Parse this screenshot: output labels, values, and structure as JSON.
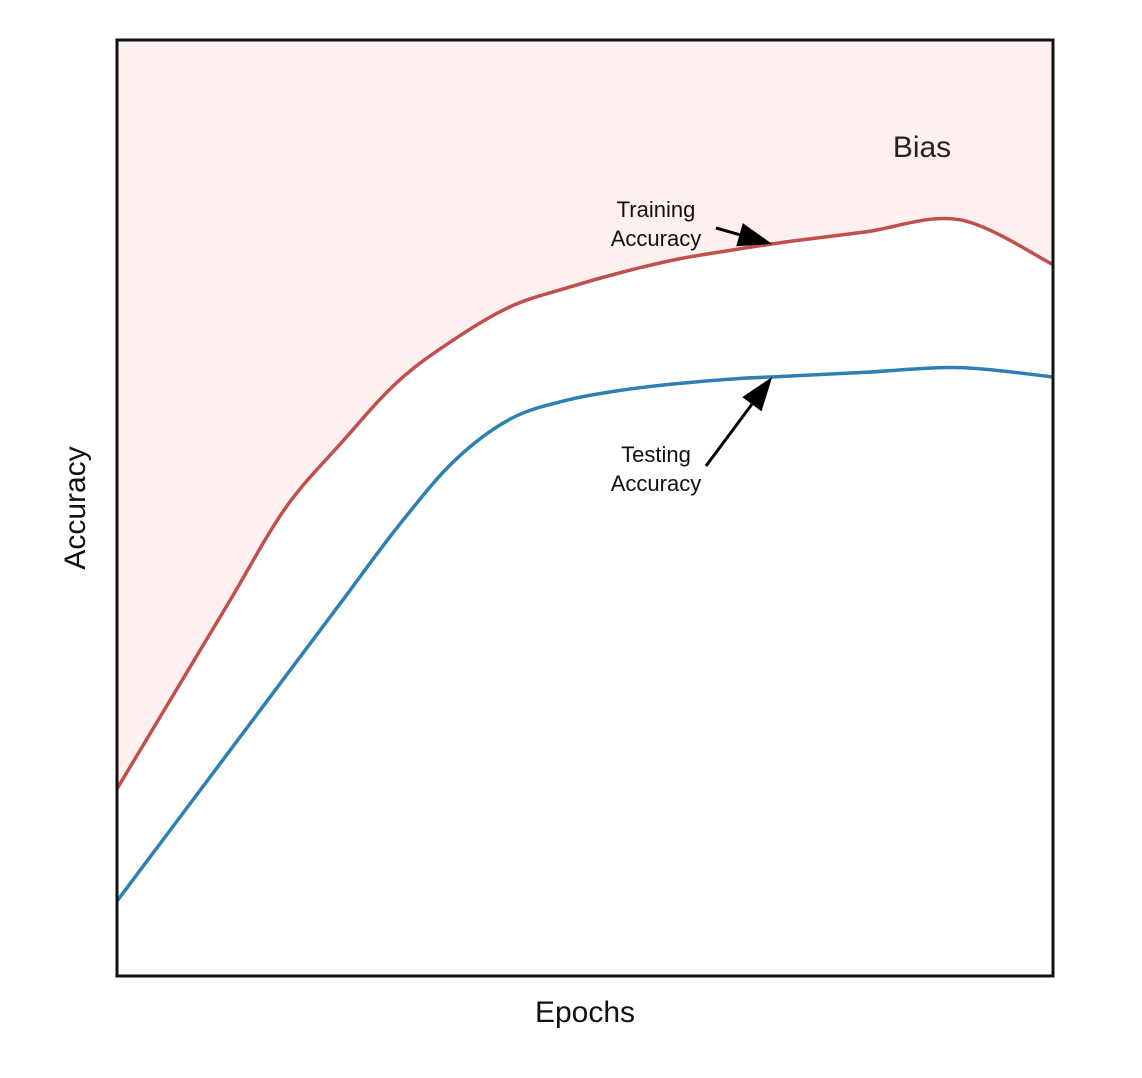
{
  "chart_data": {
    "type": "line",
    "xlabel": "Epochs",
    "ylabel": "Accuracy",
    "xlim": [
      0,
      100
    ],
    "ylim": [
      0,
      100
    ],
    "grid": false,
    "series": [
      {
        "key": "training",
        "color": "#c0504d",
        "x": [
          0,
          6,
          12,
          18,
          24,
          30,
          36,
          42,
          48,
          54,
          60,
          66,
          72,
          80,
          90,
          100
        ],
        "y": [
          20,
          30,
          40,
          50,
          57,
          63.5,
          68,
          71.5,
          73.5,
          75.2,
          76.6,
          77.6,
          78.5,
          79.5,
          80.8,
          76
        ]
      },
      {
        "key": "testing",
        "color": "#2f7fb2",
        "x": [
          0,
          6,
          12,
          18,
          24,
          30,
          36,
          42,
          48,
          54,
          60,
          66,
          72,
          80,
          90,
          100
        ],
        "y": [
          8,
          16,
          24,
          32,
          40,
          48,
          55,
          59.5,
          61.5,
          62.6,
          63.3,
          63.8,
          64.1,
          64.5,
          65,
          64
        ]
      }
    ],
    "shaded_region": {
      "label": "Bias",
      "fill": "#fdf0ef",
      "between": "training-and-top"
    },
    "annotations": [
      {
        "lines": [
          "Training",
          "Accuracy"
        ],
        "target_series": "training",
        "target_x": 70
      },
      {
        "lines": [
          "Testing",
          "Accuracy"
        ],
        "target_series": "testing",
        "target_x": 70
      }
    ]
  }
}
